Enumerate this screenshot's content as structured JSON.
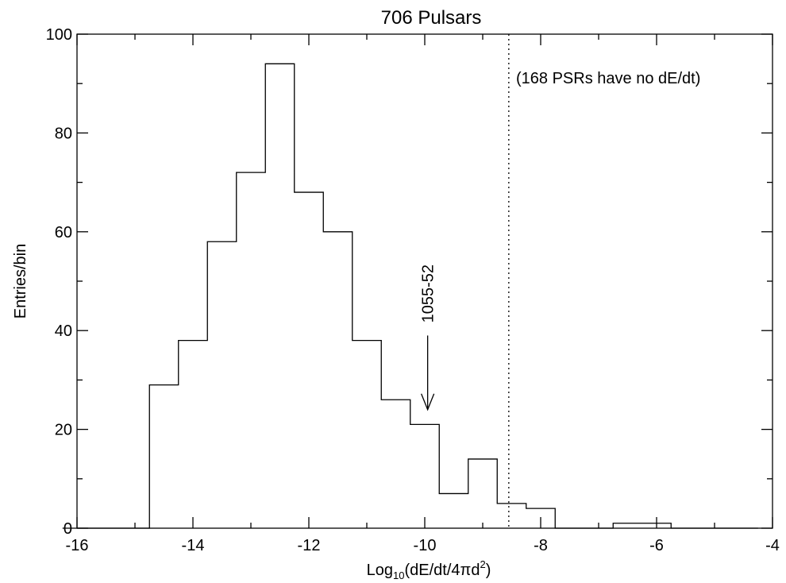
{
  "chart_data": {
    "type": "histogram",
    "title": "706 Pulsars",
    "xlabel": {
      "prefix": "Log",
      "subscript": "10",
      "middle": "(dE/dt/4πd",
      "superscript": "2",
      "suffix": ")"
    },
    "ylabel": "Entries/bin",
    "xlim": [
      -16,
      -4
    ],
    "ylim": [
      0,
      100
    ],
    "x_ticks": [
      -16,
      -14,
      -12,
      -10,
      -8,
      -6,
      -4
    ],
    "x_tick_labels": [
      "-16",
      "-14",
      "-12",
      "-10",
      "-8",
      "-6",
      "-4"
    ],
    "y_ticks": [
      0,
      20,
      40,
      60,
      80,
      100
    ],
    "y_tick_labels": [
      "0",
      "20",
      "40",
      "60",
      "80",
      "100"
    ],
    "bin_edges": [
      -16.25,
      -15.75,
      -15.25,
      -14.75,
      -14.25,
      -13.75,
      -13.25,
      -12.75,
      -12.25,
      -11.75,
      -11.25,
      -10.75,
      -10.25,
      -9.75,
      -9.25,
      -8.75,
      -8.25,
      -7.75,
      -7.25,
      -6.75,
      -6.25,
      -5.75,
      -5.25,
      -4.75,
      -4.25
    ],
    "counts": [
      0,
      0,
      0,
      29,
      38,
      58,
      72,
      94,
      68,
      60,
      38,
      26,
      21,
      7,
      14,
      5,
      4,
      0,
      0,
      1,
      1,
      0,
      0,
      0
    ],
    "dotted_line_x": -8.55,
    "annotations": {
      "note": "(168 PSRs have no dE/dt)",
      "arrow_label": "1055-52",
      "arrow_x": -9.95,
      "arrow_from_y": 39,
      "arrow_to_y": 24
    },
    "grid": false,
    "legend": "none"
  }
}
